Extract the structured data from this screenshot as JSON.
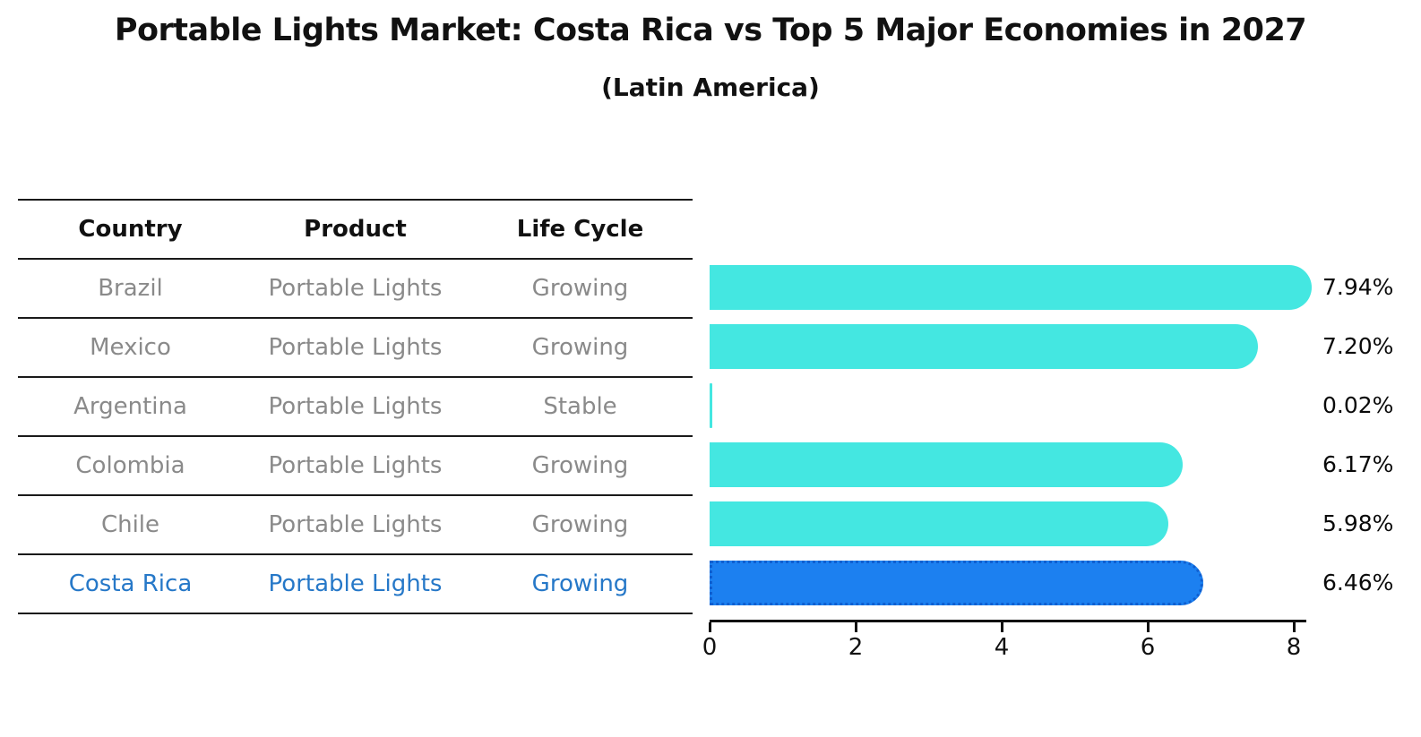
{
  "title": "Portable Lights Market: Costa Rica vs Top 5 Major Economies in 2027",
  "subtitle": "(Latin America)",
  "table": {
    "headers": [
      "Country",
      "Product",
      "Life Cycle"
    ],
    "rows": [
      {
        "country": "Brazil",
        "product": "Portable Lights",
        "life_cycle": "Growing",
        "highlight": false
      },
      {
        "country": "Mexico",
        "product": "Portable Lights",
        "life_cycle": "Growing",
        "highlight": false
      },
      {
        "country": "Argentina",
        "product": "Portable Lights",
        "life_cycle": "Stable",
        "highlight": false
      },
      {
        "country": "Colombia",
        "product": "Portable Lights",
        "life_cycle": "Growing",
        "highlight": false
      },
      {
        "country": "Chile",
        "product": "Portable Lights",
        "life_cycle": "Growing",
        "highlight": false
      },
      {
        "country": "Costa Rica",
        "product": "Portable Lights",
        "life_cycle": "Growing",
        "highlight": true
      }
    ]
  },
  "chart_data": {
    "type": "bar",
    "orientation": "horizontal",
    "title": "Portable Lights Market: Costa Rica vs Top 5 Major Economies in 2027 (Latin America)",
    "categories": [
      "Brazil",
      "Mexico",
      "Argentina",
      "Colombia",
      "Chile",
      "Costa Rica"
    ],
    "values": [
      7.94,
      7.2,
      0.02,
      6.17,
      5.98,
      6.46
    ],
    "value_labels": [
      "7.94%",
      "7.20%",
      "0.02%",
      "6.17%",
      "5.98%",
      "6.46%"
    ],
    "unit": "%",
    "xlabel": "",
    "ylabel": "",
    "xlim": [
      0,
      8.5
    ],
    "xticks": [
      "0",
      "2",
      "4",
      "6",
      "8"
    ],
    "grid": false,
    "legend": false,
    "bar_color": "#44e7e1",
    "highlight_index": 5,
    "highlight_bar_color": "#1c80f0",
    "highlight_border_color": "#0f5fd0"
  },
  "colors": {
    "table_line": "#1a1a1a",
    "table_text": "#8a8a8a",
    "header_text": "#111111",
    "highlight_text": "#2678c8"
  }
}
